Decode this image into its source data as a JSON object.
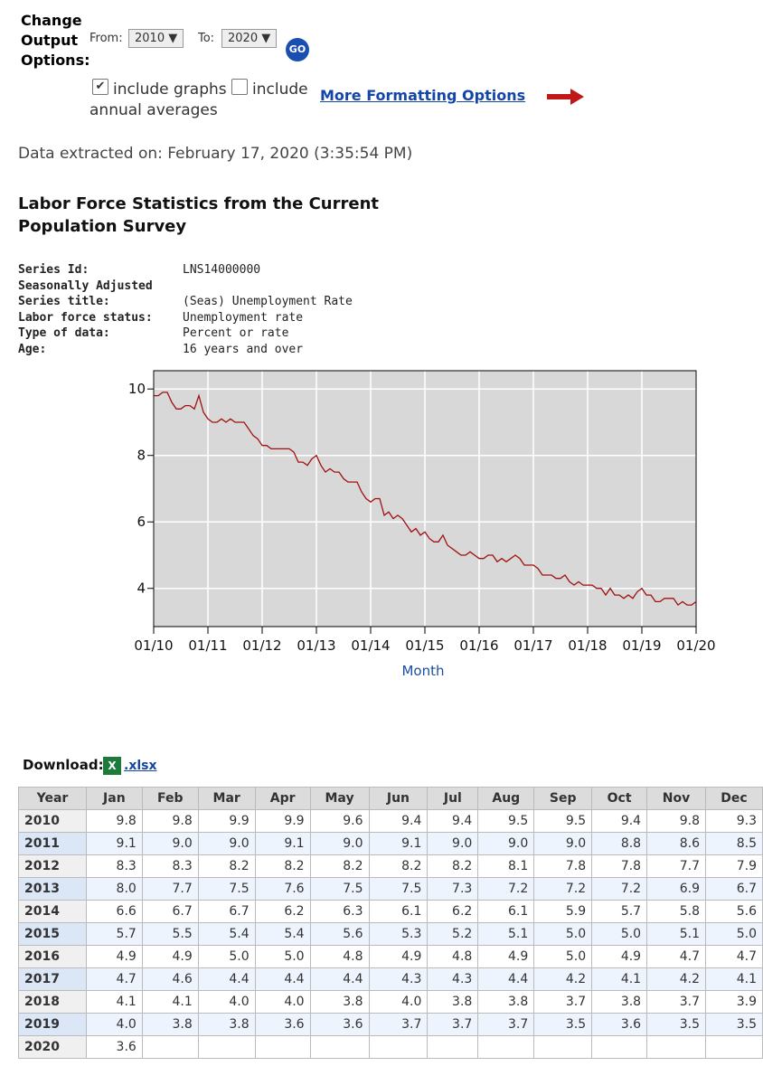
{
  "form": {
    "title": [
      "Change",
      "Output",
      "Options:"
    ],
    "from_label": "From:",
    "from": "2010 ▼",
    "to_label": "To:",
    "to": "2020 ▼",
    "go": "GO",
    "graphs": "include graphs",
    "annual_1": "include",
    "annual_2": "annual averages",
    "more": "More Formatting Options"
  },
  "extracted": "Data extracted on: February 17, 2020 (3:35:54 PM)",
  "title": [
    "Labor Force Statistics from the Current",
    "Population Survey"
  ],
  "series_info": [
    {
      "label": "Series Id:",
      "value": "LNS14000000"
    },
    {
      "label": "Seasonally Adjusted"
    },
    {
      "label": "Series title:",
      "value": "(Seas) Unemployment Rate"
    },
    {
      "label": "Labor force status:",
      "value": "Unemployment rate"
    },
    {
      "label": "Type of data:",
      "value": "Percent or rate"
    },
    {
      "label": "Age:",
      "value": "16 years and over"
    }
  ],
  "chart_data": {
    "type": "line",
    "xlabel": "Month",
    "color": "#a01010",
    "grid": true,
    "ylim": [
      2.85,
      10.55
    ],
    "yticks": [
      4,
      6,
      8,
      10
    ],
    "xticks": [
      "01/10",
      "01/11",
      "01/12",
      "01/13",
      "01/14",
      "01/15",
      "01/16",
      "01/17",
      "01/18",
      "01/19",
      "01/20"
    ]
  },
  "download": {
    "label": "Download:",
    "link": ".xlsx"
  },
  "table": {
    "header": [
      "Year",
      "Jan",
      "Feb",
      "Mar",
      "Apr",
      "May",
      "Jun",
      "Jul",
      "Aug",
      "Sep",
      "Oct",
      "Nov",
      "Dec"
    ],
    "rows": [
      [
        "2010",
        "9.8",
        "9.8",
        "9.9",
        "9.9",
        "9.6",
        "9.4",
        "9.4",
        "9.5",
        "9.5",
        "9.4",
        "9.8",
        "9.3"
      ],
      [
        "2011",
        "9.1",
        "9.0",
        "9.0",
        "9.1",
        "9.0",
        "9.1",
        "9.0",
        "9.0",
        "9.0",
        "8.8",
        "8.6",
        "8.5"
      ],
      [
        "2012",
        "8.3",
        "8.3",
        "8.2",
        "8.2",
        "8.2",
        "8.2",
        "8.2",
        "8.1",
        "7.8",
        "7.8",
        "7.7",
        "7.9"
      ],
      [
        "2013",
        "8.0",
        "7.7",
        "7.5",
        "7.6",
        "7.5",
        "7.5",
        "7.3",
        "7.2",
        "7.2",
        "7.2",
        "6.9",
        "6.7"
      ],
      [
        "2014",
        "6.6",
        "6.7",
        "6.7",
        "6.2",
        "6.3",
        "6.1",
        "6.2",
        "6.1",
        "5.9",
        "5.7",
        "5.8",
        "5.6"
      ],
      [
        "2015",
        "5.7",
        "5.5",
        "5.4",
        "5.4",
        "5.6",
        "5.3",
        "5.2",
        "5.1",
        "5.0",
        "5.0",
        "5.1",
        "5.0"
      ],
      [
        "2016",
        "4.9",
        "4.9",
        "5.0",
        "5.0",
        "4.8",
        "4.9",
        "4.8",
        "4.9",
        "5.0",
        "4.9",
        "4.7",
        "4.7"
      ],
      [
        "2017",
        "4.7",
        "4.6",
        "4.4",
        "4.4",
        "4.4",
        "4.3",
        "4.3",
        "4.4",
        "4.2",
        "4.1",
        "4.2",
        "4.1"
      ],
      [
        "2018",
        "4.1",
        "4.1",
        "4.0",
        "4.0",
        "3.8",
        "4.0",
        "3.8",
        "3.8",
        "3.7",
        "3.8",
        "3.7",
        "3.9"
      ],
      [
        "2019",
        "4.0",
        "3.8",
        "3.8",
        "3.6",
        "3.6",
        "3.7",
        "3.7",
        "3.7",
        "3.5",
        "3.6",
        "3.5",
        "3.5"
      ],
      [
        "2020",
        "3.6"
      ]
    ]
  }
}
